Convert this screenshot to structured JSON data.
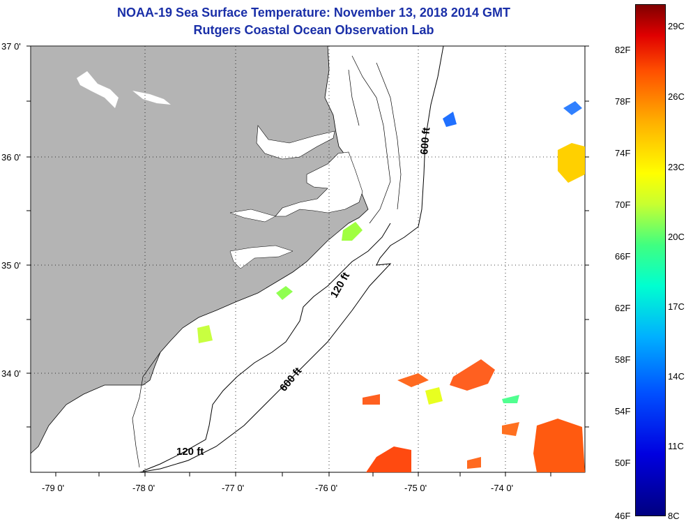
{
  "title_line1": "NOAA-19 Sea Surface Temperature:  November 13, 2018 2014 GMT",
  "title_line2": "Rutgers Coastal Ocean Observation Lab",
  "lat_labels": [
    "37 0'",
    "36 0'",
    "35 0'",
    "34 0'"
  ],
  "lon_labels": [
    "-79 0'",
    "-78 0'",
    "-77 0'",
    "-76 0'",
    "-75 0'",
    "-74 0'"
  ],
  "contours": {
    "shallow": "120 ft",
    "deep": "600 ft"
  },
  "colorbar": {
    "fahrenheit": [
      "82F",
      "78F",
      "74F",
      "70F",
      "66F",
      "62F",
      "58F",
      "54F",
      "50F",
      "46F"
    ],
    "celsius": [
      "29C",
      "26C",
      "23C",
      "20C",
      "17C",
      "14C",
      "11C",
      "8C"
    ],
    "range_c": [
      8,
      30
    ]
  },
  "colors": {
    "land": "#b4b4b4",
    "title": "#1a2fa8",
    "warm": "#ff5a10",
    "cool": "#00a0ff",
    "mid": "#b8ff40"
  }
}
